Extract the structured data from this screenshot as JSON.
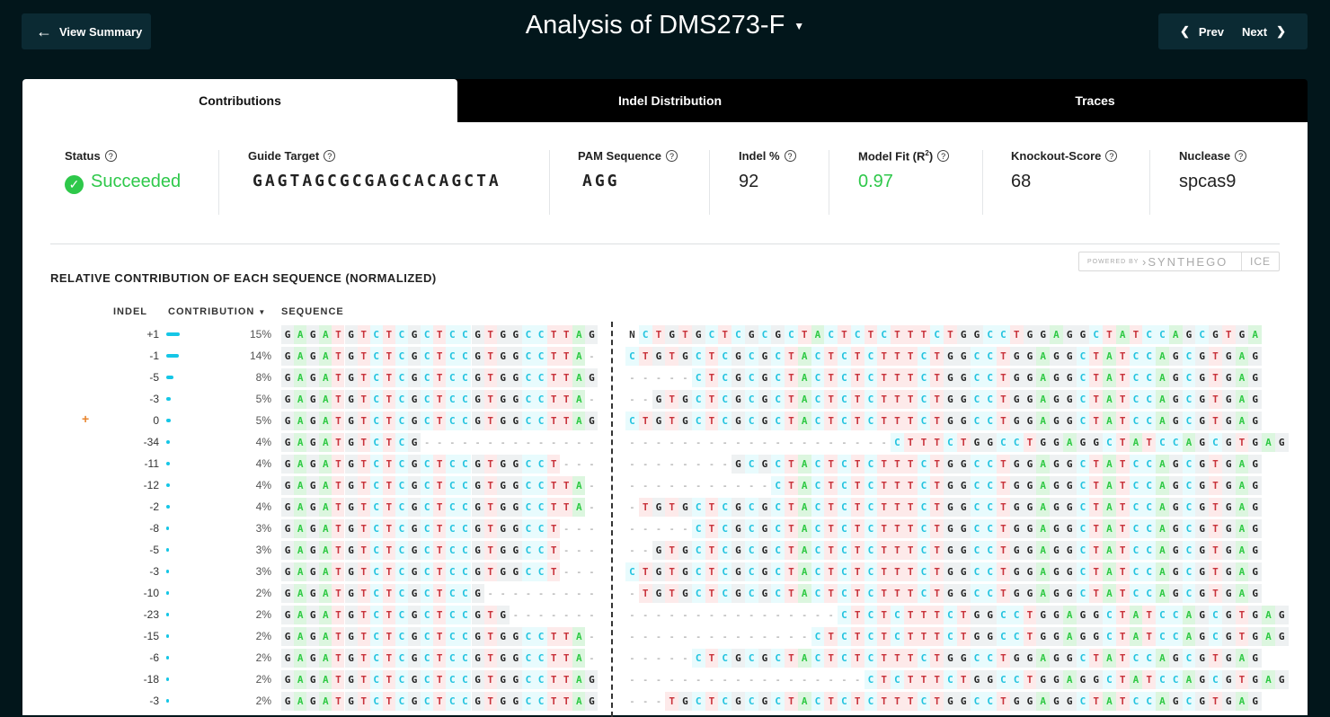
{
  "header": {
    "back_label": "View Summary",
    "title": "Analysis of DMS273-F",
    "prev_label": "Prev",
    "next_label": "Next"
  },
  "tabs": [
    {
      "label": "Contributions"
    },
    {
      "label": "Indel Distribution"
    },
    {
      "label": "Traces"
    }
  ],
  "stats": {
    "status": {
      "label": "Status",
      "value": "Succeeded"
    },
    "guide": {
      "label": "Guide Target",
      "value": "GAGTAGCGCGAGCACAGCTA"
    },
    "pam": {
      "label": "PAM Sequence",
      "value": "AGG"
    },
    "indel": {
      "label": "Indel %",
      "value": "92"
    },
    "fit": {
      "label": "Model Fit (R",
      "sup": "2",
      "label_end": ")",
      "value": "0.97"
    },
    "ko": {
      "label": "Knockout-Score",
      "value": "68"
    },
    "nuclease": {
      "label": "Nuclease",
      "value": "spcas9"
    }
  },
  "powered": {
    "by": "POWERED BY",
    "brand": "SYNTHEGO",
    "product": "ICE"
  },
  "section_title": "RELATIVE CONTRIBUTION OF EACH SEQUENCE (NORMALIZED)",
  "table": {
    "headers": {
      "indel": "INDEL",
      "contribution": "CONTRIBUTION",
      "sequence": "SEQUENCE"
    },
    "rows": [
      {
        "indel": "+1",
        "pct": "15%",
        "v": 15,
        "left": "GAGATGTCTCGCTCCGTGGCCTTAG",
        "right": "NCTGTGCTCGCGCTACTCTCTTTCTGGCCTGGAGGCTATCCAGCGTGA"
      },
      {
        "indel": "-1",
        "pct": "14%",
        "v": 14,
        "left": "GAGATGTCTCGCTCCGTGGCCTTA-",
        "right": "CTGTGCTCGCGCTACTCTCTTTCTGGCCTGGAGGCTATCCAGCGTGAG"
      },
      {
        "indel": "-5",
        "pct": "8%",
        "v": 8,
        "left": "GAGATGTCTCGCTCCGTGGCCTTAG",
        "right": "-----CTCGCGCTACTCTCTTTCTGGCCTGGAGGCTATCCAGCGTGAG"
      },
      {
        "indel": "-3",
        "pct": "5%",
        "v": 5,
        "left": "GAGATGTCTCGCTCCGTGGCCTTA-",
        "right": "--GTGCTCGCGCTACTCTCTTTCTGGCCTGGAGGCTATCCAGCGTGAG"
      },
      {
        "indel": "0",
        "pct": "5%",
        "v": 5,
        "ref": true,
        "left": "GAGATGTCTCGCTCCGTGGCCTTAG",
        "right": "CTGTGCTCGCGCTACTCTCTTTCTGGCCTGGAGGCTATCCAGCGTGAG"
      },
      {
        "indel": "-34",
        "pct": "4%",
        "v": 4,
        "left": "GAGATGTCTCG--------------",
        "right": "--------------------CTTTCTGGCCTGGAGGCTATCCAGCGTGAG"
      },
      {
        "indel": "-11",
        "pct": "4%",
        "v": 4,
        "left": "GAGATGTCTCGCTCCGTGGCCT---",
        "right": "--------GCGCTACTCTCTTTCTGGCCTGGAGGCTATCCAGCGTGAG"
      },
      {
        "indel": "-12",
        "pct": "4%",
        "v": 4,
        "left": "GAGATGTCTCGCTCCGTGGCCTTA-",
        "right": "-----------CTACTCTCTTTCTGGCCTGGAGGCTATCCAGCGTGAG"
      },
      {
        "indel": "-2",
        "pct": "4%",
        "v": 4,
        "left": "GAGATGTCTCGCTCCGTGGCCTTA-",
        "right": "-TGTGCTCGCGCTACTCTCTTTCTGGCCTGGAGGCTATCCAGCGTGAG"
      },
      {
        "indel": "-8",
        "pct": "3%",
        "v": 3,
        "left": "GAGATGTCTCGCTCCGTGGCCT---",
        "right": "-----CTCGCGCTACTCTCTTTCTGGCCTGGAGGCTATCCAGCGTGAG"
      },
      {
        "indel": "-5",
        "pct": "3%",
        "v": 3,
        "left": "GAGATGTCTCGCTCCGTGGCCT---",
        "right": "--GTGCTCGCGCTACTCTCTTTCTGGCCTGGAGGCTATCCAGCGTGAG"
      },
      {
        "indel": "-3",
        "pct": "3%",
        "v": 3,
        "left": "GAGATGTCTCGCTCCGTGGCCT---",
        "right": "CTGTGCTCGCGCTACTCTCTTTCTGGCCTGGAGGCTATCCAGCGTGAG"
      },
      {
        "indel": "-10",
        "pct": "2%",
        "v": 2,
        "left": "GAGATGTCTCGCTCCG---------",
        "right": "-TGTGCTCGCGCTACTCTCTTTCTGGCCTGGAGGCTATCCAGCGTGAG"
      },
      {
        "indel": "-23",
        "pct": "2%",
        "v": 2,
        "left": "GAGATGTCTCGCTCCGTG-------",
        "right": "----------------CTCTCTTTCTGGCCTGGAGGCTATCCAGCGTGAG"
      },
      {
        "indel": "-15",
        "pct": "2%",
        "v": 2,
        "left": "GAGATGTCTCGCTCCGTGGCCTTA-",
        "right": "--------------CTCTCTCTTTCTGGCCTGGAGGCTATCCAGCGTGAG"
      },
      {
        "indel": "-6",
        "pct": "2%",
        "v": 2,
        "left": "GAGATGTCTCGCTCCGTGGCCTTA-",
        "right": "-----CTCGCGCTACTCTCTTTCTGGCCTGGAGGCTATCCAGCGTGAG"
      },
      {
        "indel": "-18",
        "pct": "2%",
        "v": 2,
        "left": "GAGATGTCTCGCTCCGTGGCCTTAG",
        "right": "------------------CTCTTTCTGGCCTGGAGGCTATCCAGCGTGAG"
      },
      {
        "indel": "-3",
        "pct": "2%",
        "v": 2,
        "left": "GAGATGTCTCGCTCCGTGGCCTTAG",
        "right": "---TGCTCGCGCTACTCTCTTTCTGGCCTGGAGGCTATCCAGCGTGAG"
      }
    ]
  }
}
